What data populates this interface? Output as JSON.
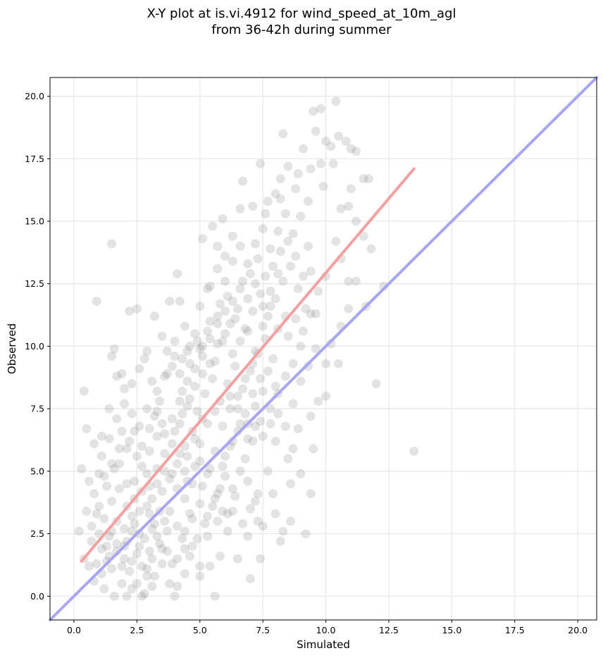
{
  "chart_data": {
    "type": "scatter",
    "title": "X-Y plot at is.vi.4912 for wind_speed_at_10m_agl\nfrom 36-42h during summer",
    "xlabel": "Simulated",
    "ylabel": "Observed",
    "xlim": [
      -0.95,
      20.75
    ],
    "ylim": [
      -0.95,
      20.75
    ],
    "xticks": [
      "0.0",
      "2.5",
      "5.0",
      "7.5",
      "10.0",
      "12.5",
      "15.0",
      "17.5",
      "20.0"
    ],
    "yticks": [
      "0.0",
      "2.5",
      "5.0",
      "7.5",
      "10.0",
      "12.5",
      "15.0",
      "17.5",
      "20.0"
    ],
    "grid": true,
    "point_color": "#808080",
    "point_alpha": 0.22,
    "points": [
      [
        0.3,
        5.1
      ],
      [
        0.4,
        8.2
      ],
      [
        0.5,
        6.7
      ],
      [
        0.9,
        11.8
      ],
      [
        1.5,
        14.1
      ],
      [
        1.6,
        9.9
      ],
      [
        1.9,
        8.9
      ],
      [
        2.2,
        11.4
      ],
      [
        2.5,
        11.5
      ],
      [
        3.2,
        11.2
      ],
      [
        3.5,
        10.4
      ],
      [
        4.1,
        12.9
      ],
      [
        3.8,
        11.8
      ],
      [
        4.2,
        11.8
      ],
      [
        0.6,
        4.6
      ],
      [
        0.8,
        4.1
      ],
      [
        1.0,
        3.6
      ],
      [
        1.2,
        3.1
      ],
      [
        1.5,
        2.6
      ],
      [
        1.7,
        2.1
      ],
      [
        2.0,
        1.5
      ],
      [
        2.2,
        1.0
      ],
      [
        2.5,
        0.5
      ],
      [
        2.8,
        0.1
      ],
      [
        3.0,
        1.8
      ],
      [
        3.3,
        2.4
      ],
      [
        3.6,
        3.0
      ],
      [
        3.9,
        1.3
      ],
      [
        4.1,
        0.4
      ],
      [
        4.4,
        1.9
      ],
      [
        1.1,
        5.6
      ],
      [
        1.4,
        6.3
      ],
      [
        1.7,
        7.1
      ],
      [
        2.0,
        7.7
      ],
      [
        2.3,
        8.5
      ],
      [
        2.6,
        9.1
      ],
      [
        2.9,
        9.8
      ],
      [
        3.1,
        8.6
      ],
      [
        3.4,
        7.8
      ],
      [
        3.7,
        8.9
      ],
      [
        4.0,
        9.6
      ],
      [
        4.3,
        8.2
      ],
      [
        4.6,
        9.3
      ],
      [
        4.9,
        10.2
      ],
      [
        1.2,
        4.8
      ],
      [
        1.5,
        5.3
      ],
      [
        1.8,
        5.9
      ],
      [
        2.1,
        4.5
      ],
      [
        2.4,
        3.9
      ],
      [
        2.7,
        5.2
      ],
      [
        3.0,
        5.8
      ],
      [
        3.3,
        6.4
      ],
      [
        3.6,
        5.0
      ],
      [
        3.9,
        6.1
      ],
      [
        4.2,
        6.9
      ],
      [
        4.5,
        5.6
      ],
      [
        4.8,
        6.3
      ],
      [
        5.1,
        7.1
      ],
      [
        3.5,
        4.2
      ],
      [
        3.8,
        4.7
      ],
      [
        4.1,
        4.3
      ],
      [
        4.4,
        5.0
      ],
      [
        4.7,
        4.5
      ],
      [
        5.0,
        5.4
      ],
      [
        5.3,
        4.9
      ],
      [
        5.6,
        5.8
      ],
      [
        5.9,
        5.2
      ],
      [
        6.2,
        6.0
      ],
      [
        6.5,
        6.6
      ],
      [
        6.8,
        5.5
      ],
      [
        7.1,
        6.2
      ],
      [
        7.4,
        7.0
      ],
      [
        4.0,
        6.6
      ],
      [
        4.3,
        7.3
      ],
      [
        4.6,
        7.9
      ],
      [
        4.9,
        7.4
      ],
      [
        5.2,
        8.1
      ],
      [
        5.5,
        8.7
      ],
      [
        5.8,
        7.8
      ],
      [
        6.1,
        8.5
      ],
      [
        6.4,
        9.2
      ],
      [
        6.7,
        8.3
      ],
      [
        7.0,
        9.0
      ],
      [
        7.3,
        9.7
      ],
      [
        7.6,
        10.3
      ],
      [
        7.9,
        9.5
      ],
      [
        5.0,
        9.9
      ],
      [
        5.3,
        10.6
      ],
      [
        5.6,
        9.4
      ],
      [
        5.9,
        10.2
      ],
      [
        6.2,
        10.9
      ],
      [
        6.5,
        11.5
      ],
      [
        6.8,
        10.7
      ],
      [
        7.1,
        11.4
      ],
      [
        7.4,
        12.1
      ],
      [
        7.7,
        11.2
      ],
      [
        8.0,
        11.9
      ],
      [
        8.3,
        12.6
      ],
      [
        8.6,
        13.2
      ],
      [
        8.9,
        12.3
      ],
      [
        5.4,
        12.4
      ],
      [
        5.7,
        13.1
      ],
      [
        6.0,
        12.6
      ],
      [
        6.3,
        13.4
      ],
      [
        6.6,
        14.0
      ],
      [
        6.9,
        13.3
      ],
      [
        7.2,
        14.1
      ],
      [
        7.5,
        14.7
      ],
      [
        7.8,
        13.9
      ],
      [
        8.1,
        14.6
      ],
      [
        8.4,
        15.3
      ],
      [
        8.7,
        14.5
      ],
      [
        9.0,
        15.2
      ],
      [
        9.3,
        14.0
      ],
      [
        7.7,
        15.8
      ],
      [
        8.0,
        16.1
      ],
      [
        8.2,
        16.7
      ],
      [
        8.5,
        17.2
      ],
      [
        8.9,
        16.9
      ],
      [
        9.1,
        17.9
      ],
      [
        9.4,
        17.1
      ],
      [
        9.6,
        18.6
      ],
      [
        9.8,
        17.3
      ],
      [
        10.0,
        18.2
      ],
      [
        10.2,
        18.0
      ],
      [
        10.5,
        18.4
      ],
      [
        10.8,
        18.2
      ],
      [
        11.0,
        17.9
      ],
      [
        9.5,
        19.4
      ],
      [
        9.8,
        19.5
      ],
      [
        10.4,
        19.8
      ],
      [
        8.3,
        18.5
      ],
      [
        7.4,
        17.3
      ],
      [
        6.7,
        16.6
      ],
      [
        11.2,
        17.8
      ],
      [
        11.5,
        16.7
      ],
      [
        11.0,
        16.3
      ],
      [
        11.7,
        16.7
      ],
      [
        11.2,
        15.0
      ],
      [
        10.6,
        15.5
      ],
      [
        10.9,
        15.6
      ],
      [
        10.4,
        14.2
      ],
      [
        11.5,
        14.4
      ],
      [
        10.9,
        12.6
      ],
      [
        10.6,
        13.5
      ],
      [
        10.0,
        12.8
      ],
      [
        9.6,
        11.3
      ],
      [
        9.2,
        11.5
      ],
      [
        9.0,
        10.0
      ],
      [
        10.0,
        9.3
      ],
      [
        10.5,
        9.3
      ],
      [
        10.0,
        8.0
      ],
      [
        9.7,
        7.8
      ],
      [
        9.4,
        7.2
      ],
      [
        8.9,
        6.7
      ],
      [
        8.7,
        5.9
      ],
      [
        8.0,
        6.2
      ],
      [
        7.7,
        5.0
      ],
      [
        7.2,
        3.8
      ],
      [
        7.5,
        2.8
      ],
      [
        7.0,
        0.7
      ],
      [
        6.5,
        1.5
      ],
      [
        6.1,
        2.6
      ],
      [
        5.8,
        1.6
      ],
      [
        5.6,
        0.0
      ],
      [
        5.3,
        2.4
      ],
      [
        5.0,
        1.2
      ],
      [
        4.6,
        3.3
      ],
      [
        4.4,
        2.6
      ],
      [
        4.0,
        0.0
      ],
      [
        8.3,
        2.6
      ],
      [
        8.2,
        2.2
      ],
      [
        8.6,
        3.0
      ],
      [
        9.2,
        2.5
      ],
      [
        9.4,
        4.1
      ],
      [
        8.5,
        5.5
      ],
      [
        7.9,
        4.1
      ],
      [
        7.4,
        1.5
      ],
      [
        6.9,
        2.4
      ],
      [
        6.3,
        3.4
      ],
      [
        5.7,
        3.0
      ],
      [
        5.4,
        1.2
      ],
      [
        3.1,
        1.5
      ],
      [
        2.7,
        0.0
      ],
      [
        0.2,
        2.6
      ],
      [
        0.4,
        1.5
      ],
      [
        0.6,
        1.2
      ],
      [
        0.8,
        0.6
      ],
      [
        1.0,
        2.5
      ],
      [
        1.2,
        0.3
      ],
      [
        1.4,
        1.6
      ],
      [
        1.6,
        0.0
      ],
      [
        1.9,
        0.5
      ],
      [
        2.1,
        0.0
      ],
      [
        2.3,
        0.3
      ],
      [
        1.3,
        1.4
      ],
      [
        0.9,
        3.3
      ],
      [
        0.7,
        2.2
      ],
      [
        2.4,
        2.9
      ],
      [
        2.6,
        3.4
      ],
      [
        2.8,
        2.3
      ],
      [
        3.1,
        3.9
      ],
      [
        3.4,
        3.4
      ],
      [
        3.7,
        2.6
      ],
      [
        3.3,
        4.5
      ],
      [
        2.9,
        4.9
      ],
      [
        2.5,
        5.6
      ],
      [
        2.2,
        6.2
      ],
      [
        1.9,
        6.6
      ],
      [
        1.6,
        5.1
      ],
      [
        1.3,
        4.4
      ],
      [
        1.0,
        4.9
      ],
      [
        3.2,
        7.2
      ],
      [
        3.5,
        6.9
      ],
      [
        2.9,
        7.5
      ],
      [
        2.6,
        6.8
      ],
      [
        2.3,
        7.3
      ],
      [
        2.0,
        8.3
      ],
      [
        1.7,
        8.8
      ],
      [
        1.4,
        7.5
      ],
      [
        1.1,
        6.4
      ],
      [
        0.8,
        6.1
      ],
      [
        1.5,
        9.6
      ],
      [
        2.8,
        9.5
      ],
      [
        3.7,
        9.8
      ],
      [
        4.4,
        10.8
      ],
      [
        5.8,
        11.7
      ],
      [
        6.1,
        12.0
      ],
      [
        6.4,
        11.1
      ],
      [
        6.7,
        12.6
      ],
      [
        7.0,
        12.9
      ],
      [
        7.3,
        13.5
      ],
      [
        7.6,
        12.8
      ],
      [
        7.9,
        13.2
      ],
      [
        8.2,
        13.8
      ],
      [
        8.5,
        14.2
      ],
      [
        8.8,
        13.6
      ],
      [
        9.1,
        12.8
      ],
      [
        9.4,
        13.0
      ],
      [
        9.7,
        12.2
      ],
      [
        6.0,
        13.6
      ],
      [
        6.3,
        14.4
      ],
      [
        5.7,
        14.0
      ],
      [
        5.5,
        14.8
      ],
      [
        5.1,
        14.3
      ],
      [
        5.9,
        15.1
      ],
      [
        6.6,
        15.5
      ],
      [
        7.1,
        15.6
      ],
      [
        7.6,
        15.3
      ],
      [
        8.2,
        15.9
      ],
      [
        8.8,
        16.3
      ],
      [
        9.3,
        15.8
      ],
      [
        9.9,
        16.4
      ],
      [
        10.3,
        17.3
      ],
      [
        4.5,
        7.6
      ],
      [
        4.8,
        8.4
      ],
      [
        5.1,
        8.9
      ],
      [
        5.4,
        9.3
      ],
      [
        5.7,
        10.1
      ],
      [
        6.0,
        10.5
      ],
      [
        6.3,
        9.7
      ],
      [
        6.6,
        10.2
      ],
      [
        6.9,
        10.6
      ],
      [
        7.2,
        9.8
      ],
      [
        7.5,
        10.8
      ],
      [
        7.8,
        11.6
      ],
      [
        8.1,
        10.7
      ],
      [
        8.4,
        11.2
      ],
      [
        4.1,
        5.3
      ],
      [
        4.4,
        6.0
      ],
      [
        4.7,
        6.6
      ],
      [
        5.0,
        6.1
      ],
      [
        5.3,
        6.9
      ],
      [
        5.6,
        7.4
      ],
      [
        5.9,
        6.8
      ],
      [
        6.2,
        7.5
      ],
      [
        6.5,
        8.0
      ],
      [
        6.8,
        7.3
      ],
      [
        7.1,
        8.1
      ],
      [
        7.4,
        8.7
      ],
      [
        7.7,
        9.0
      ],
      [
        8.0,
        8.4
      ],
      [
        3.0,
        4.4
      ],
      [
        3.3,
        5.1
      ],
      [
        3.6,
        5.7
      ],
      [
        3.9,
        4.9
      ],
      [
        4.2,
        5.7
      ],
      [
        4.5,
        4.6
      ],
      [
        4.8,
        5.2
      ],
      [
        5.1,
        4.4
      ],
      [
        5.4,
        5.1
      ],
      [
        5.7,
        4.1
      ],
      [
        6.0,
        4.8
      ],
      [
        6.3,
        4.3
      ],
      [
        6.6,
        5.0
      ],
      [
        6.9,
        4.6
      ],
      [
        2.0,
        2.7
      ],
      [
        2.3,
        3.2
      ],
      [
        2.6,
        2.0
      ],
      [
        2.9,
        3.6
      ],
      [
        3.2,
        2.9
      ],
      [
        3.5,
        1.9
      ],
      [
        3.8,
        3.4
      ],
      [
        4.1,
        2.8
      ],
      [
        4.4,
        3.9
      ],
      [
        4.7,
        3.1
      ],
      [
        5.0,
        3.7
      ],
      [
        5.3,
        3.2
      ],
      [
        5.6,
        3.9
      ],
      [
        5.9,
        3.4
      ],
      [
        1.1,
        1.9
      ],
      [
        1.4,
        2.4
      ],
      [
        1.7,
        3.0
      ],
      [
        2.0,
        2.0
      ],
      [
        2.3,
        1.4
      ],
      [
        2.6,
        2.5
      ],
      [
        2.9,
        1.1
      ],
      [
        3.2,
        0.8
      ],
      [
        3.5,
        1.3
      ],
      [
        3.8,
        0.5
      ],
      [
        4.1,
        1.5
      ],
      [
        4.4,
        0.9
      ],
      [
        4.7,
        2.0
      ],
      [
        5.0,
        0.8
      ],
      [
        1.5,
        3.8
      ],
      [
        1.8,
        4.3
      ],
      [
        2.1,
        3.6
      ],
      [
        2.4,
        4.6
      ],
      [
        2.7,
        4.2
      ],
      [
        3.0,
        3.3
      ],
      [
        1.8,
        5.3
      ],
      [
        2.1,
        5.9
      ],
      [
        2.4,
        6.6
      ],
      [
        2.7,
        6.0
      ],
      [
        3.0,
        6.7
      ],
      [
        3.3,
        7.4
      ],
      [
        3.6,
        6.5
      ],
      [
        3.9,
        7.1
      ],
      [
        4.2,
        7.8
      ],
      [
        4.5,
        8.6
      ],
      [
        4.8,
        9.1
      ],
      [
        5.1,
        9.6
      ],
      [
        5.4,
        10.3
      ],
      [
        5.7,
        10.9
      ],
      [
        6.0,
        11.4
      ],
      [
        6.3,
        11.8
      ],
      [
        6.6,
        12.3
      ],
      [
        6.9,
        11.9
      ],
      [
        7.2,
        12.5
      ],
      [
        7.5,
        11.6
      ],
      [
        7.8,
        12.2
      ],
      [
        8.1,
        12.9
      ],
      [
        6.9,
        6.9
      ],
      [
        7.2,
        7.6
      ],
      [
        7.5,
        8.2
      ],
      [
        7.8,
        7.5
      ],
      [
        8.1,
        8.1
      ],
      [
        8.4,
        8.8
      ],
      [
        8.7,
        9.3
      ],
      [
        9.0,
        8.6
      ],
      [
        9.3,
        9.2
      ],
      [
        9.6,
        9.9
      ],
      [
        8.5,
        10.4
      ],
      [
        8.8,
        11.1
      ],
      [
        9.1,
        10.6
      ],
      [
        9.4,
        11.3
      ],
      [
        6.7,
        2.9
      ],
      [
        7.0,
        3.5
      ],
      [
        7.3,
        4.1
      ],
      [
        6.4,
        4.0
      ],
      [
        6.1,
        3.3
      ],
      [
        5.8,
        4.3
      ],
      [
        5.5,
        3.6
      ],
      [
        5.2,
        2.9
      ],
      [
        4.9,
        2.3
      ],
      [
        4.6,
        1.6
      ],
      [
        4.3,
        2.3
      ],
      [
        3.7,
        1.8
      ],
      [
        3.4,
        2.1
      ],
      [
        3.1,
        2.7
      ],
      [
        6.0,
        5.6
      ],
      [
        6.3,
        6.2
      ],
      [
        6.6,
        6.9
      ],
      [
        6.9,
        6.3
      ],
      [
        7.2,
        6.8
      ],
      [
        7.5,
        6.4
      ],
      [
        7.8,
        6.9
      ],
      [
        8.1,
        7.3
      ],
      [
        8.4,
        6.8
      ],
      [
        8.7,
        7.7
      ],
      [
        6.2,
        8.0
      ],
      [
        6.5,
        7.5
      ],
      [
        6.8,
        8.7
      ],
      [
        7.1,
        9.3
      ],
      [
        3.3,
        8.2
      ],
      [
        3.6,
        8.8
      ],
      [
        3.9,
        9.2
      ],
      [
        4.2,
        8.9
      ],
      [
        4.5,
        9.8
      ],
      [
        4.8,
        10.5
      ],
      [
        5.1,
        10.0
      ],
      [
        5.4,
        11.0
      ],
      [
        5.7,
        11.2
      ],
      [
        4.0,
        10.2
      ],
      [
        4.3,
        9.5
      ],
      [
        4.6,
        10.0
      ],
      [
        5.0,
        11.6
      ],
      [
        5.3,
        12.3
      ],
      [
        0.5,
        3.4
      ],
      [
        0.7,
        2.8
      ],
      [
        0.9,
        1.3
      ],
      [
        1.1,
        0.9
      ],
      [
        1.3,
        2.0
      ],
      [
        1.5,
        1.1
      ],
      [
        1.7,
        1.8
      ],
      [
        1.9,
        1.2
      ],
      [
        2.1,
        2.2
      ],
      [
        2.3,
        2.6
      ],
      [
        2.5,
        1.7
      ],
      [
        2.7,
        1.2
      ],
      [
        2.9,
        0.8
      ],
      [
        3.1,
        0.4
      ],
      [
        13.5,
        5.8
      ],
      [
        12.0,
        8.5
      ],
      [
        11.6,
        11.6
      ],
      [
        12.3,
        12.4
      ],
      [
        7.3,
        3.0
      ],
      [
        8.0,
        3.3
      ],
      [
        8.6,
        4.5
      ],
      [
        9.0,
        4.9
      ],
      [
        9.5,
        5.9
      ],
      [
        10.2,
        10.1
      ],
      [
        10.6,
        10.8
      ],
      [
        10.9,
        11.5
      ],
      [
        11.2,
        12.6
      ],
      [
        11.8,
        13.9
      ]
    ],
    "series": [
      {
        "kind": "regression",
        "color": "#f4a0a0",
        "x": [
          0.3,
          13.5
        ],
        "y": [
          1.4,
          17.1
        ]
      },
      {
        "kind": "one-to-one",
        "color": "#a6a6f4",
        "x": [
          -0.95,
          20.75
        ],
        "y": [
          -0.95,
          20.75
        ]
      }
    ]
  }
}
